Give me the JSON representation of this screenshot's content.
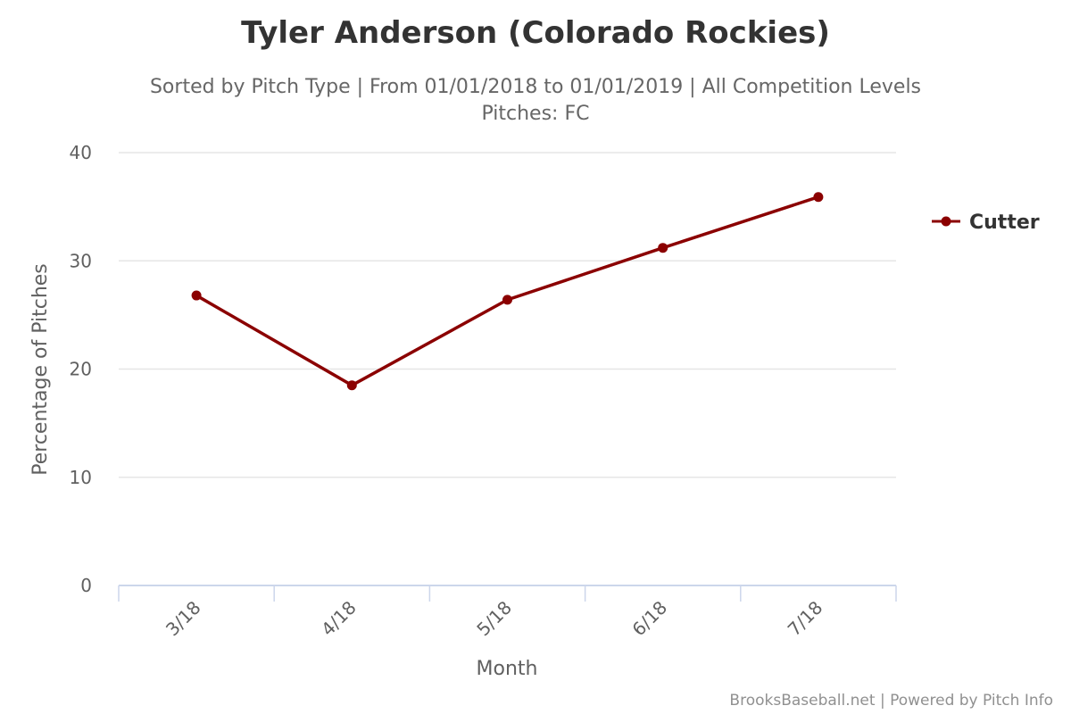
{
  "colors": {
    "series": "#8b0000",
    "grid": "#e6e6e6",
    "axis": "#ccd6eb"
  },
  "chart_data": {
    "type": "line",
    "title": "Tyler Anderson (Colorado Rockies)",
    "subtitle_line1": "Sorted by Pitch Type | From 01/01/2018 to 01/01/2019 | All Competition Levels",
    "subtitle_line2": "Pitches: FC",
    "xlabel": "Month",
    "ylabel": "Percentage of Pitches",
    "categories": [
      "3/18",
      "4/18",
      "5/18",
      "6/18",
      "7/18"
    ],
    "ylim": [
      0,
      40
    ],
    "yticks": [
      0,
      10,
      20,
      30,
      40
    ],
    "grid": true,
    "legend_position": "right",
    "series": [
      {
        "name": "Cutter",
        "values": [
          26.8,
          18.5,
          26.4,
          31.2,
          35.9
        ]
      }
    ],
    "credits": "BrooksBaseball.net | Powered by Pitch Info"
  }
}
